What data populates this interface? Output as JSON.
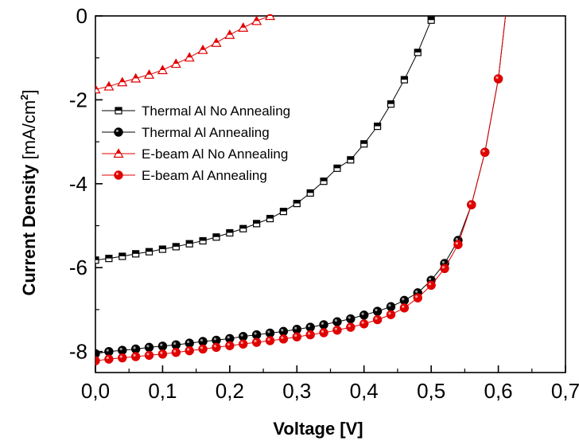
{
  "chart_data": {
    "type": "line",
    "xlabel": "Voltage [V]",
    "ylabel_main": "Current Density ",
    "ylabel_unit": "[mA/cm",
    "ylabel_sup": "2",
    "ylabel_close": "]",
    "xlim": [
      0.0,
      0.7
    ],
    "ylim": [
      -8.5,
      0.0
    ],
    "x_ticks": [
      0.0,
      0.1,
      0.2,
      0.3,
      0.4,
      0.5,
      0.6,
      0.7
    ],
    "x_tick_labels": [
      "0,0",
      "0,1",
      "0,2",
      "0,3",
      "0,4",
      "0,5",
      "0,6",
      "0,7"
    ],
    "y_ticks": [
      0,
      -2,
      -4,
      -6,
      -8
    ],
    "y_tick_labels": [
      "0",
      "-2",
      "-4",
      "-6",
      "-8"
    ],
    "grid": false,
    "legend_position": "upper-left",
    "series": [
      {
        "name": "Thermal Al No Annealing",
        "color": "#000000",
        "marker": "square-half",
        "x": [
          0.0,
          0.02,
          0.04,
          0.06,
          0.08,
          0.1,
          0.12,
          0.14,
          0.16,
          0.18,
          0.2,
          0.22,
          0.24,
          0.26,
          0.28,
          0.3,
          0.32,
          0.34,
          0.36,
          0.38,
          0.4,
          0.42,
          0.44,
          0.46,
          0.48,
          0.5
        ],
        "y": [
          -5.82,
          -5.78,
          -5.73,
          -5.67,
          -5.62,
          -5.56,
          -5.5,
          -5.43,
          -5.36,
          -5.27,
          -5.17,
          -5.07,
          -4.95,
          -4.83,
          -4.66,
          -4.47,
          -4.22,
          -3.94,
          -3.63,
          -3.43,
          -3.05,
          -2.63,
          -2.1,
          -1.52,
          -0.87,
          -0.1
        ]
      },
      {
        "name": "Thermal Al Annealing",
        "color": "#000000",
        "marker": "circle",
        "x": [
          0.0,
          0.02,
          0.04,
          0.06,
          0.08,
          0.1,
          0.12,
          0.14,
          0.16,
          0.18,
          0.2,
          0.22,
          0.24,
          0.26,
          0.28,
          0.3,
          0.32,
          0.34,
          0.36,
          0.38,
          0.4,
          0.42,
          0.44,
          0.46,
          0.48,
          0.5,
          0.52,
          0.54,
          0.56,
          0.58,
          0.6
        ],
        "y": [
          -8.05,
          -8.0,
          -7.97,
          -7.94,
          -7.9,
          -7.87,
          -7.84,
          -7.8,
          -7.76,
          -7.73,
          -7.69,
          -7.64,
          -7.6,
          -7.56,
          -7.52,
          -7.47,
          -7.42,
          -7.36,
          -7.29,
          -7.22,
          -7.13,
          -7.04,
          -6.93,
          -6.78,
          -6.6,
          -6.3,
          -5.9,
          -5.35,
          -4.5,
          -3.25,
          -1.5
        ]
      },
      {
        "name": "E-beam Al No Annealing",
        "color": "#e00000",
        "marker": "triangle-half",
        "x": [
          0.0,
          0.02,
          0.04,
          0.06,
          0.08,
          0.1,
          0.12,
          0.14,
          0.16,
          0.18,
          0.2,
          0.22,
          0.24,
          0.26
        ],
        "y": [
          -1.75,
          -1.68,
          -1.58,
          -1.49,
          -1.4,
          -1.29,
          -1.14,
          -0.99,
          -0.81,
          -0.64,
          -0.45,
          -0.28,
          -0.12,
          0.0
        ]
      },
      {
        "name": "E-beam Al Annealing",
        "color": "#e00000",
        "marker": "circle",
        "x": [
          0.0,
          0.02,
          0.04,
          0.06,
          0.08,
          0.1,
          0.12,
          0.14,
          0.16,
          0.18,
          0.2,
          0.22,
          0.24,
          0.26,
          0.28,
          0.3,
          0.32,
          0.34,
          0.36,
          0.38,
          0.4,
          0.42,
          0.44,
          0.46,
          0.48,
          0.5,
          0.52,
          0.54,
          0.56,
          0.58,
          0.6
        ],
        "y": [
          -8.22,
          -8.18,
          -8.15,
          -8.12,
          -8.09,
          -8.06,
          -8.02,
          -7.98,
          -7.94,
          -7.9,
          -7.86,
          -7.82,
          -7.78,
          -7.74,
          -7.7,
          -7.65,
          -7.6,
          -7.55,
          -7.49,
          -7.42,
          -7.34,
          -7.24,
          -7.12,
          -6.96,
          -6.72,
          -6.42,
          -6.02,
          -5.45,
          -4.5,
          -3.25,
          -1.5
        ]
      }
    ]
  }
}
